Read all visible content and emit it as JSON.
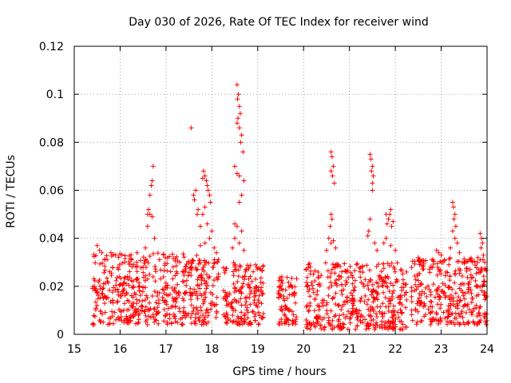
{
  "chart_data": {
    "type": "scatter",
    "title": "Day 030 of 2026, Rate Of TEC Index for receiver wind",
    "xlabel": "GPS time / hours",
    "ylabel": "ROTI / TECUs",
    "xlim": [
      15,
      24
    ],
    "ylim": [
      0,
      0.12
    ],
    "x_ticks": [
      "15",
      "16",
      "17",
      "18",
      "19",
      "20",
      "21",
      "22",
      "23",
      "24"
    ],
    "y_ticks": [
      "0",
      "0.02",
      "0.04",
      "0.06",
      "0.08",
      "0.1",
      "0.12"
    ],
    "grid": true,
    "marker": "plus",
    "color": "#ff0000",
    "background_band": {
      "note_free": true,
      "segments": [
        {
          "x0": 15.4,
          "x1": 18.15,
          "y0": 0.004,
          "y1": 0.034
        },
        {
          "x0": 18.25,
          "x1": 19.15,
          "y0": 0.004,
          "y1": 0.03
        },
        {
          "x0": 19.45,
          "x1": 19.85,
          "y0": 0.004,
          "y1": 0.024
        },
        {
          "x0": 20.05,
          "x1": 22.25,
          "y0": 0.002,
          "y1": 0.03
        },
        {
          "x0": 22.35,
          "x1": 24.0,
          "y0": 0.004,
          "y1": 0.032
        }
      ]
    },
    "points": [
      [
        15.5,
        0.037
      ],
      [
        15.55,
        0.035
      ],
      [
        15.6,
        0.034
      ],
      [
        15.8,
        0.034
      ],
      [
        15.9,
        0.033
      ],
      [
        16.1,
        0.03
      ],
      [
        16.55,
        0.036
      ],
      [
        16.6,
        0.05
      ],
      [
        16.62,
        0.052
      ],
      [
        16.65,
        0.058
      ],
      [
        16.68,
        0.062
      ],
      [
        16.7,
        0.064
      ],
      [
        16.72,
        0.07
      ],
      [
        16.65,
        0.05
      ],
      [
        16.7,
        0.049
      ],
      [
        16.6,
        0.045
      ],
      [
        16.75,
        0.04
      ],
      [
        17.55,
        0.086
      ],
      [
        17.6,
        0.058
      ],
      [
        17.62,
        0.056
      ],
      [
        17.65,
        0.06
      ],
      [
        17.7,
        0.052
      ],
      [
        17.68,
        0.05
      ],
      [
        17.8,
        0.065
      ],
      [
        17.82,
        0.068
      ],
      [
        17.85,
        0.066
      ],
      [
        17.88,
        0.064
      ],
      [
        17.9,
        0.062
      ],
      [
        17.92,
        0.06
      ],
      [
        17.95,
        0.058
      ],
      [
        17.97,
        0.055
      ],
      [
        17.85,
        0.053
      ],
      [
        17.8,
        0.05
      ],
      [
        17.75,
        0.045
      ],
      [
        17.9,
        0.046
      ],
      [
        18.0,
        0.043
      ],
      [
        17.95,
        0.04
      ],
      [
        17.85,
        0.038
      ],
      [
        17.75,
        0.037
      ],
      [
        18.05,
        0.036
      ],
      [
        18.1,
        0.034
      ],
      [
        18.55,
        0.104
      ],
      [
        18.58,
        0.1
      ],
      [
        18.56,
        0.098
      ],
      [
        18.6,
        0.095
      ],
      [
        18.62,
        0.092
      ],
      [
        18.57,
        0.09
      ],
      [
        18.55,
        0.088
      ],
      [
        18.6,
        0.086
      ],
      [
        18.65,
        0.083
      ],
      [
        18.63,
        0.08
      ],
      [
        18.68,
        0.076
      ],
      [
        18.5,
        0.07
      ],
      [
        18.55,
        0.067
      ],
      [
        18.6,
        0.066
      ],
      [
        18.7,
        0.064
      ],
      [
        18.65,
        0.058
      ],
      [
        18.6,
        0.055
      ],
      [
        18.5,
        0.046
      ],
      [
        18.55,
        0.045
      ],
      [
        18.65,
        0.043
      ],
      [
        18.5,
        0.04
      ],
      [
        18.6,
        0.038
      ],
      [
        18.45,
        0.036
      ],
      [
        18.7,
        0.035
      ],
      [
        20.6,
        0.076
      ],
      [
        20.62,
        0.074
      ],
      [
        20.65,
        0.07
      ],
      [
        20.6,
        0.068
      ],
      [
        20.63,
        0.066
      ],
      [
        20.67,
        0.063
      ],
      [
        20.6,
        0.05
      ],
      [
        20.62,
        0.048
      ],
      [
        20.58,
        0.045
      ],
      [
        20.55,
        0.04
      ],
      [
        20.65,
        0.039
      ],
      [
        20.6,
        0.038
      ],
      [
        20.7,
        0.036
      ],
      [
        20.5,
        0.035
      ],
      [
        21.45,
        0.075
      ],
      [
        21.47,
        0.073
      ],
      [
        21.5,
        0.07
      ],
      [
        21.48,
        0.068
      ],
      [
        21.52,
        0.066
      ],
      [
        21.5,
        0.063
      ],
      [
        21.5,
        0.06
      ],
      [
        21.45,
        0.048
      ],
      [
        21.42,
        0.043
      ],
      [
        21.4,
        0.041
      ],
      [
        21.55,
        0.038
      ],
      [
        21.6,
        0.035
      ],
      [
        21.8,
        0.05
      ],
      [
        21.85,
        0.048
      ],
      [
        21.9,
        0.052
      ],
      [
        21.88,
        0.05
      ],
      [
        21.95,
        0.047
      ],
      [
        21.82,
        0.046
      ],
      [
        21.92,
        0.045
      ],
      [
        21.8,
        0.04
      ],
      [
        21.75,
        0.038
      ],
      [
        21.9,
        0.037
      ],
      [
        22.0,
        0.035
      ],
      [
        22.5,
        0.032
      ],
      [
        22.55,
        0.03
      ],
      [
        22.9,
        0.035
      ],
      [
        22.95,
        0.034
      ],
      [
        23.0,
        0.033
      ],
      [
        23.25,
        0.055
      ],
      [
        23.27,
        0.053
      ],
      [
        23.3,
        0.05
      ],
      [
        23.28,
        0.048
      ],
      [
        23.32,
        0.045
      ],
      [
        23.25,
        0.043
      ],
      [
        23.3,
        0.04
      ],
      [
        23.35,
        0.038
      ],
      [
        23.2,
        0.036
      ],
      [
        23.4,
        0.034
      ],
      [
        23.85,
        0.042
      ],
      [
        23.88,
        0.04
      ],
      [
        23.9,
        0.038
      ],
      [
        23.87,
        0.036
      ],
      [
        23.92,
        0.033
      ],
      [
        23.95,
        0.03
      ]
    ]
  }
}
